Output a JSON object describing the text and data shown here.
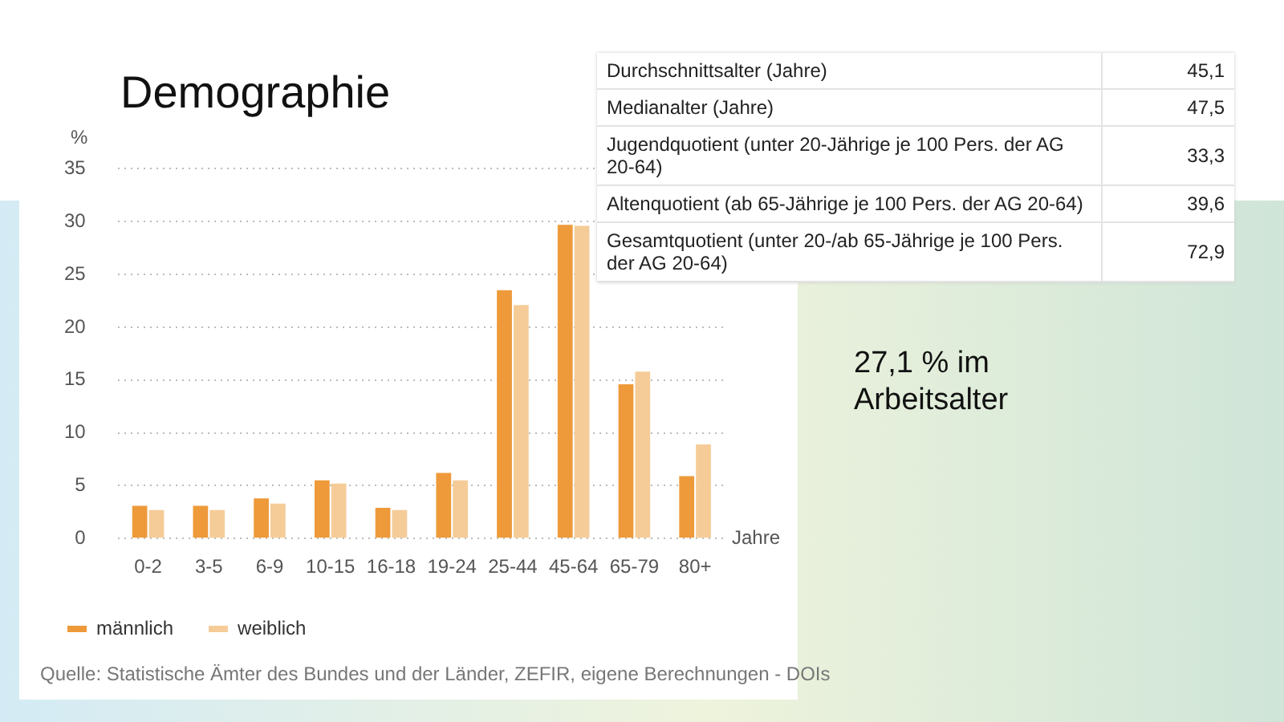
{
  "chart_data": {
    "type": "bar",
    "title": "Demographie",
    "ylabel": "%",
    "xlabel": "Jahre",
    "categories": [
      "0-2",
      "3-5",
      "6-9",
      "10-15",
      "16-18",
      "19-24",
      "25-44",
      "45-64",
      "65-79",
      "80+"
    ],
    "series": [
      {
        "name": "männlich",
        "color": "#ee9a3a",
        "values": [
          3.1,
          3.1,
          3.8,
          5.5,
          2.9,
          6.2,
          23.5,
          29.7,
          14.6,
          5.9
        ]
      },
      {
        "name": "weiblich",
        "color": "#f5cc98",
        "values": [
          2.7,
          2.7,
          3.3,
          5.2,
          2.7,
          5.5,
          22.1,
          29.6,
          15.8,
          8.9
        ]
      }
    ],
    "ylim": [
      0,
      35
    ],
    "yticks": [
      0,
      5,
      10,
      15,
      20,
      25,
      30,
      35
    ],
    "grid": "y",
    "legend": "bottom left",
    "annotations": [
      "Quelle: Statistische Ämter des Bundes und der Länder, ZEFIR, eigene Berechnungen - DOIs",
      "27,1 % im Arbeitsalter",
      "Durchschnittsalter (Jahre)",
      "45,1",
      "Medianalter (Jahre)",
      "47,5",
      "Jugendquotient (unter 20-Jährige je 100 Pers. der AG 20-64)",
      "33,3",
      "Altenquotient (ab 65-Jährige je 100 Pers. der AG 20-64)",
      "39,6",
      "Gesamtquotient (unter 20-/ab 65-Jährige je 100 Pers. der AG 20-64)",
      "72,9"
    ]
  }
}
